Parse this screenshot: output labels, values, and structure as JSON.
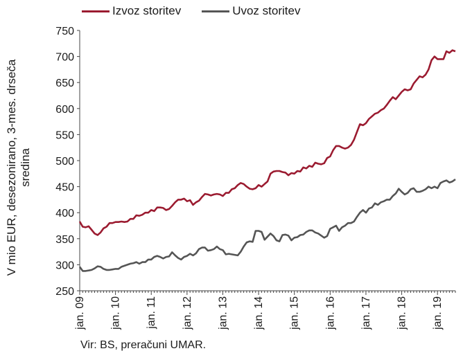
{
  "chart_data": {
    "type": "line",
    "title": "",
    "ylabel": "V mio EUR, desezonirano, 3-mes. drseča sredina",
    "ylim": [
      250,
      750
    ],
    "y_ticks": [
      "250",
      "300",
      "350",
      "400",
      "450",
      "500",
      "550",
      "600",
      "650",
      "700",
      "750"
    ],
    "x_tick_labels": [
      "jan. 09",
      "jan. 10",
      "jan. 11",
      "jan. 12",
      "jan. 13",
      "jan. 14",
      "jan. 15",
      "jan. 16",
      "jan. 17",
      "jan. 18",
      "jan. 19"
    ],
    "x_range": [
      "2009-01",
      "2019-07"
    ],
    "grid": false,
    "legend_position": "top",
    "series": [
      {
        "name": "Izvoz storitev",
        "color": "#9b1b30",
        "points": [
          [
            "2009-01",
            383
          ],
          [
            "2009-02",
            373
          ],
          [
            "2009-03",
            372
          ],
          [
            "2009-04",
            374
          ],
          [
            "2009-05",
            367
          ],
          [
            "2009-06",
            360
          ],
          [
            "2009-07",
            357
          ],
          [
            "2009-08",
            362
          ],
          [
            "2009-09",
            370
          ],
          [
            "2009-10",
            373
          ],
          [
            "2009-11",
            380
          ],
          [
            "2009-12",
            380
          ],
          [
            "2010-01",
            382
          ],
          [
            "2010-02",
            382
          ],
          [
            "2010-03",
            383
          ],
          [
            "2010-04",
            382
          ],
          [
            "2010-05",
            383
          ],
          [
            "2010-06",
            388
          ],
          [
            "2010-07",
            388
          ],
          [
            "2010-08",
            395
          ],
          [
            "2010-09",
            394
          ],
          [
            "2010-10",
            396
          ],
          [
            "2010-11",
            400
          ],
          [
            "2010-12",
            400
          ],
          [
            "2011-01",
            405
          ],
          [
            "2011-02",
            403
          ],
          [
            "2011-03",
            410
          ],
          [
            "2011-04",
            410
          ],
          [
            "2011-05",
            409
          ],
          [
            "2011-06",
            405
          ],
          [
            "2011-07",
            407
          ],
          [
            "2011-08",
            413
          ],
          [
            "2011-09",
            420
          ],
          [
            "2011-10",
            425
          ],
          [
            "2011-11",
            425
          ],
          [
            "2011-12",
            427
          ],
          [
            "2012-01",
            422
          ],
          [
            "2012-02",
            424
          ],
          [
            "2012-03",
            415
          ],
          [
            "2012-04",
            420
          ],
          [
            "2012-05",
            423
          ],
          [
            "2012-06",
            430
          ],
          [
            "2012-07",
            436
          ],
          [
            "2012-08",
            435
          ],
          [
            "2012-09",
            433
          ],
          [
            "2012-10",
            435
          ],
          [
            "2012-11",
            436
          ],
          [
            "2012-12",
            435
          ],
          [
            "2013-01",
            432
          ],
          [
            "2013-02",
            438
          ],
          [
            "2013-03",
            438
          ],
          [
            "2013-04",
            445
          ],
          [
            "2013-05",
            447
          ],
          [
            "2013-06",
            453
          ],
          [
            "2013-07",
            457
          ],
          [
            "2013-08",
            455
          ],
          [
            "2013-09",
            450
          ],
          [
            "2013-10",
            446
          ],
          [
            "2013-11",
            445
          ],
          [
            "2013-12",
            447
          ],
          [
            "2014-01",
            453
          ],
          [
            "2014-02",
            450
          ],
          [
            "2014-03",
            455
          ],
          [
            "2014-04",
            460
          ],
          [
            "2014-05",
            475
          ],
          [
            "2014-06",
            479
          ],
          [
            "2014-07",
            480
          ],
          [
            "2014-08",
            480
          ],
          [
            "2014-09",
            478
          ],
          [
            "2014-10",
            477
          ],
          [
            "2014-11",
            472
          ],
          [
            "2014-12",
            476
          ],
          [
            "2015-01",
            475
          ],
          [
            "2015-02",
            480
          ],
          [
            "2015-03",
            479
          ],
          [
            "2015-04",
            487
          ],
          [
            "2015-05",
            485
          ],
          [
            "2015-06",
            490
          ],
          [
            "2015-07",
            488
          ],
          [
            "2015-08",
            496
          ],
          [
            "2015-09",
            494
          ],
          [
            "2015-10",
            493
          ],
          [
            "2015-11",
            495
          ],
          [
            "2015-12",
            505
          ],
          [
            "2016-01",
            508
          ],
          [
            "2016-02",
            520
          ],
          [
            "2016-03",
            528
          ],
          [
            "2016-04",
            528
          ],
          [
            "2016-05",
            525
          ],
          [
            "2016-06",
            523
          ],
          [
            "2016-07",
            525
          ],
          [
            "2016-08",
            530
          ],
          [
            "2016-09",
            540
          ],
          [
            "2016-10",
            555
          ],
          [
            "2016-11",
            570
          ],
          [
            "2016-12",
            568
          ],
          [
            "2017-01",
            572
          ],
          [
            "2017-02",
            580
          ],
          [
            "2017-03",
            585
          ],
          [
            "2017-04",
            590
          ],
          [
            "2017-05",
            592
          ],
          [
            "2017-06",
            597
          ],
          [
            "2017-07",
            600
          ],
          [
            "2017-08",
            607
          ],
          [
            "2017-09",
            615
          ],
          [
            "2017-10",
            622
          ],
          [
            "2017-11",
            618
          ],
          [
            "2017-12",
            625
          ],
          [
            "2018-01",
            632
          ],
          [
            "2018-02",
            637
          ],
          [
            "2018-03",
            635
          ],
          [
            "2018-04",
            637
          ],
          [
            "2018-05",
            648
          ],
          [
            "2018-06",
            655
          ],
          [
            "2018-07",
            662
          ],
          [
            "2018-08",
            660
          ],
          [
            "2018-09",
            665
          ],
          [
            "2018-10",
            675
          ],
          [
            "2018-11",
            693
          ],
          [
            "2018-12",
            700
          ],
          [
            "2019-01",
            695
          ],
          [
            "2019-02",
            695
          ],
          [
            "2019-03",
            695
          ],
          [
            "2019-04",
            710
          ],
          [
            "2019-05",
            707
          ],
          [
            "2019-06",
            712
          ],
          [
            "2019-07",
            710
          ]
        ]
      },
      {
        "name": "Uvoz storitev",
        "color": "#555555",
        "points": [
          [
            "2009-01",
            296
          ],
          [
            "2009-02",
            288
          ],
          [
            "2009-03",
            288
          ],
          [
            "2009-04",
            289
          ],
          [
            "2009-05",
            290
          ],
          [
            "2009-06",
            293
          ],
          [
            "2009-07",
            297
          ],
          [
            "2009-08",
            296
          ],
          [
            "2009-09",
            292
          ],
          [
            "2009-10",
            290
          ],
          [
            "2009-11",
            290
          ],
          [
            "2009-12",
            291
          ],
          [
            "2010-01",
            292
          ],
          [
            "2010-02",
            292
          ],
          [
            "2010-03",
            296
          ],
          [
            "2010-04",
            298
          ],
          [
            "2010-05",
            300
          ],
          [
            "2010-06",
            302
          ],
          [
            "2010-07",
            303
          ],
          [
            "2010-08",
            305
          ],
          [
            "2010-09",
            302
          ],
          [
            "2010-10",
            305
          ],
          [
            "2010-11",
            305
          ],
          [
            "2010-12",
            310
          ],
          [
            "2011-01",
            310
          ],
          [
            "2011-02",
            315
          ],
          [
            "2011-03",
            317
          ],
          [
            "2011-04",
            315
          ],
          [
            "2011-05",
            312
          ],
          [
            "2011-06",
            315
          ],
          [
            "2011-07",
            316
          ],
          [
            "2011-08",
            324
          ],
          [
            "2011-09",
            318
          ],
          [
            "2011-10",
            313
          ],
          [
            "2011-11",
            310
          ],
          [
            "2011-12",
            315
          ],
          [
            "2012-01",
            317
          ],
          [
            "2012-02",
            321
          ],
          [
            "2012-03",
            318
          ],
          [
            "2012-04",
            322
          ],
          [
            "2012-05",
            330
          ],
          [
            "2012-06",
            333
          ],
          [
            "2012-07",
            333
          ],
          [
            "2012-08",
            327
          ],
          [
            "2012-09",
            328
          ],
          [
            "2012-10",
            330
          ],
          [
            "2012-11",
            335
          ],
          [
            "2012-12",
            330
          ],
          [
            "2013-01",
            328
          ],
          [
            "2013-02",
            320
          ],
          [
            "2013-03",
            321
          ],
          [
            "2013-04",
            320
          ],
          [
            "2013-05",
            319
          ],
          [
            "2013-06",
            318
          ],
          [
            "2013-07",
            325
          ],
          [
            "2013-08",
            335
          ],
          [
            "2013-09",
            343
          ],
          [
            "2013-10",
            345
          ],
          [
            "2013-11",
            344
          ],
          [
            "2013-12",
            365
          ],
          [
            "2014-01",
            365
          ],
          [
            "2014-02",
            363
          ],
          [
            "2014-03",
            348
          ],
          [
            "2014-04",
            354
          ],
          [
            "2014-05",
            360
          ],
          [
            "2014-06",
            355
          ],
          [
            "2014-07",
            347
          ],
          [
            "2014-08",
            345
          ],
          [
            "2014-09",
            357
          ],
          [
            "2014-10",
            358
          ],
          [
            "2014-11",
            356
          ],
          [
            "2014-12",
            347
          ],
          [
            "2015-01",
            352
          ],
          [
            "2015-02",
            353
          ],
          [
            "2015-03",
            357
          ],
          [
            "2015-04",
            358
          ],
          [
            "2015-05",
            363
          ],
          [
            "2015-06",
            366
          ],
          [
            "2015-07",
            366
          ],
          [
            "2015-08",
            362
          ],
          [
            "2015-09",
            360
          ],
          [
            "2015-10",
            356
          ],
          [
            "2015-11",
            352
          ],
          [
            "2015-12",
            355
          ],
          [
            "2016-01",
            369
          ],
          [
            "2016-02",
            372
          ],
          [
            "2016-03",
            375
          ],
          [
            "2016-04",
            365
          ],
          [
            "2016-05",
            372
          ],
          [
            "2016-06",
            375
          ],
          [
            "2016-07",
            380
          ],
          [
            "2016-08",
            380
          ],
          [
            "2016-09",
            383
          ],
          [
            "2016-10",
            392
          ],
          [
            "2016-11",
            400
          ],
          [
            "2016-12",
            405
          ],
          [
            "2017-01",
            400
          ],
          [
            "2017-02",
            408
          ],
          [
            "2017-03",
            410
          ],
          [
            "2017-04",
            418
          ],
          [
            "2017-05",
            415
          ],
          [
            "2017-06",
            420
          ],
          [
            "2017-07",
            422
          ],
          [
            "2017-08",
            425
          ],
          [
            "2017-09",
            425
          ],
          [
            "2017-10",
            432
          ],
          [
            "2017-11",
            437
          ],
          [
            "2017-12",
            446
          ],
          [
            "2018-01",
            440
          ],
          [
            "2018-02",
            435
          ],
          [
            "2018-03",
            438
          ],
          [
            "2018-04",
            445
          ],
          [
            "2018-05",
            447
          ],
          [
            "2018-06",
            440
          ],
          [
            "2018-07",
            440
          ],
          [
            "2018-08",
            442
          ],
          [
            "2018-09",
            445
          ],
          [
            "2018-10",
            450
          ],
          [
            "2018-11",
            447
          ],
          [
            "2018-12",
            450
          ],
          [
            "2019-01",
            447
          ],
          [
            "2019-02",
            457
          ],
          [
            "2019-03",
            460
          ],
          [
            "2019-04",
            462
          ],
          [
            "2019-05",
            458
          ],
          [
            "2019-06",
            460
          ],
          [
            "2019-07",
            464
          ]
        ]
      }
    ]
  },
  "source_text": "Vir: BS, preračuni UMAR."
}
